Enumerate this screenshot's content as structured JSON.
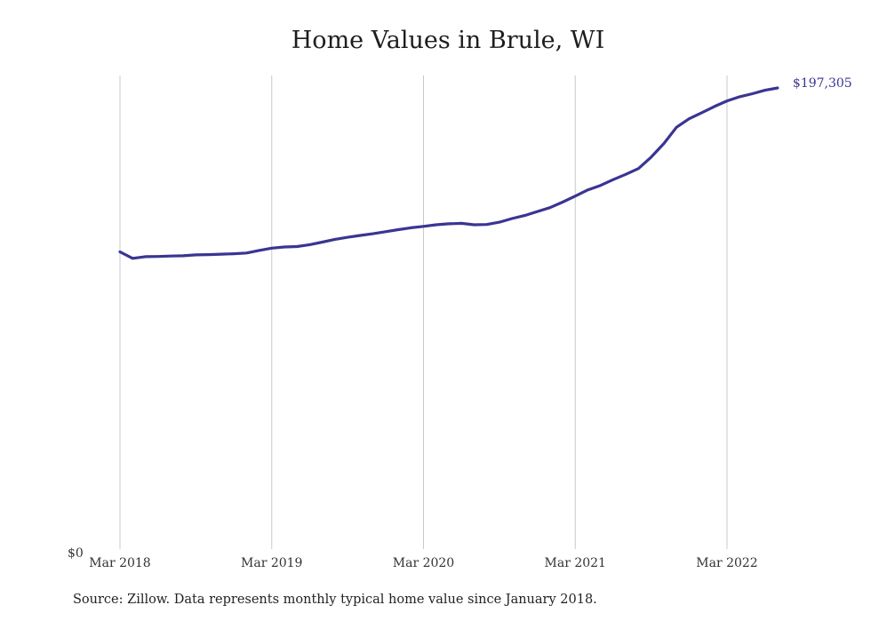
{
  "chart_data": {
    "type": "line",
    "title": "Home Values in Brule, WI",
    "xlabel": "",
    "ylabel": "",
    "grid": {
      "vertical": true,
      "horizontal": false
    },
    "x_ticks": [
      "Mar 2018",
      "Mar 2019",
      "Mar 2020",
      "Mar 2021",
      "Mar 2022"
    ],
    "y_ticks": [
      "$0"
    ],
    "ylim": [
      0,
      200000
    ],
    "end_label": "$197,305",
    "colors": {
      "line": "#3a3593",
      "grid": "#c8c8c8"
    },
    "series": [
      {
        "x": [
          "2018-03",
          "2018-04",
          "2018-05",
          "2018-06",
          "2018-07",
          "2018-08",
          "2018-09",
          "2018-10",
          "2018-11",
          "2018-12",
          "2019-01",
          "2019-02",
          "2019-03",
          "2019-04",
          "2019-05",
          "2019-06",
          "2019-07",
          "2019-08",
          "2019-09",
          "2019-10",
          "2019-11",
          "2019-12",
          "2020-01",
          "2020-02",
          "2020-03",
          "2020-04",
          "2020-05",
          "2020-06",
          "2020-07",
          "2020-08",
          "2020-09",
          "2020-10",
          "2020-11",
          "2020-12",
          "2021-01",
          "2021-02",
          "2021-03",
          "2021-04",
          "2021-05",
          "2021-06",
          "2021-07",
          "2021-08",
          "2021-09",
          "2021-10",
          "2021-11",
          "2021-12",
          "2022-01",
          "2022-02",
          "2022-03",
          "2022-04",
          "2022-05",
          "2022-06",
          "2022-07"
        ],
        "values": [
          126500,
          123700,
          124400,
          124500,
          124700,
          124800,
          125200,
          125300,
          125500,
          125700,
          126000,
          127100,
          128100,
          128600,
          128800,
          129600,
          130700,
          131900,
          132800,
          133600,
          134300,
          135200,
          136100,
          136900,
          137500,
          138200,
          138600,
          138800,
          138200,
          138300,
          139300,
          140900,
          142200,
          143900,
          145600,
          148000,
          150600,
          153300,
          155200,
          157700,
          160000,
          162500,
          167400,
          173300,
          180300,
          184000,
          186600,
          189300,
          191700,
          193500,
          194800,
          196300,
          197305
        ]
      }
    ]
  },
  "source": "Source: Zillow. Data represents monthly typical home value since January 2018."
}
